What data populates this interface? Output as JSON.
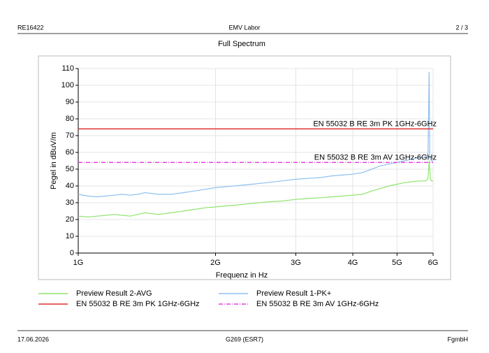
{
  "header": {
    "left": "RE16422",
    "center": "EMV Labor",
    "right": "2 / 3"
  },
  "footer": {
    "left": "17.06.2026",
    "center": "G269 (ESR7)",
    "right": "FgmbH"
  },
  "chart_data": {
    "type": "line",
    "title": "Full Spectrum",
    "x_label": "Frequenz in Hz",
    "y_label": "Pegel in dBuV/m",
    "xscale": "log",
    "grid": true,
    "xlim": [
      1000000000,
      6000000000
    ],
    "xticks": [
      {
        "value": 1000000000,
        "label": "1G"
      },
      {
        "value": 2000000000,
        "label": "2G"
      },
      {
        "value": 3000000000,
        "label": "3G"
      },
      {
        "value": 4000000000,
        "label": "4G"
      },
      {
        "value": 5000000000,
        "label": "5G"
      },
      {
        "value": 6000000000,
        "label": "6G"
      }
    ],
    "ylim": [
      0,
      110
    ],
    "yticks": [
      0,
      10,
      20,
      30,
      40,
      50,
      60,
      70,
      80,
      90,
      100,
      110
    ],
    "series": [
      {
        "name": "Preview Result 2-AVG",
        "color": "#8ee46e",
        "style": "solid",
        "x": [
          1000000000,
          1050000000,
          1100000000,
          1150000000,
          1200000000,
          1250000000,
          1300000000,
          1350000000,
          1400000000,
          1500000000,
          1600000000,
          1700000000,
          1800000000,
          1900000000,
          2000000000,
          2200000000,
          2400000000,
          2600000000,
          2800000000,
          3000000000,
          3200000000,
          3400000000,
          3600000000,
          3800000000,
          4000000000,
          4200000000,
          4400000000,
          4600000000,
          4800000000,
          5000000000,
          5200000000,
          5400000000,
          5600000000,
          5800000000,
          5850000000,
          5880000000,
          5900000000,
          5920000000,
          5950000000,
          6000000000
        ],
        "values": [
          22,
          21.5,
          22,
          22.5,
          23,
          22.5,
          22,
          23,
          24,
          23,
          24,
          25,
          26,
          27,
          27.5,
          28.5,
          29.5,
          30.5,
          31,
          32,
          32.5,
          33,
          33.5,
          34,
          34.5,
          35,
          37,
          38.5,
          40,
          41,
          42,
          42.5,
          43,
          43,
          45,
          55,
          50,
          44,
          43,
          43
        ]
      },
      {
        "name": "Preview Result 1-PK+",
        "color": "#8fc0f0",
        "style": "solid",
        "x": [
          1000000000,
          1050000000,
          1100000000,
          1150000000,
          1200000000,
          1250000000,
          1300000000,
          1350000000,
          1400000000,
          1500000000,
          1600000000,
          1700000000,
          1800000000,
          1900000000,
          2000000000,
          2200000000,
          2400000000,
          2600000000,
          2800000000,
          3000000000,
          3200000000,
          3400000000,
          3600000000,
          3800000000,
          4000000000,
          4200000000,
          4400000000,
          4600000000,
          4800000000,
          5000000000,
          5200000000,
          5400000000,
          5600000000,
          5800000000,
          5850000000,
          5880000000,
          5900000000,
          5920000000,
          5950000000,
          6000000000
        ],
        "values": [
          35,
          34,
          33.5,
          34,
          34.5,
          35,
          34.5,
          35,
          36,
          35,
          35,
          36,
          37,
          38,
          39,
          40,
          41,
          42,
          43,
          44,
          44.5,
          45,
          46,
          46.5,
          47,
          48,
          50,
          52,
          53,
          54,
          55,
          56,
          57,
          57,
          60,
          108,
          58,
          56,
          55,
          55
        ]
      },
      {
        "name": "EN 55032 B RE 3m PK 1GHz-6GHz",
        "color": "#e03030",
        "style": "solid",
        "x": [
          1000000000,
          6000000000
        ],
        "values": [
          74,
          74
        ]
      },
      {
        "name": "EN 55032 B RE 3m AV 1GHz-6GHz",
        "color": "#e040e0",
        "style": "dashdot",
        "x": [
          1000000000,
          6000000000
        ],
        "values": [
          54,
          54
        ]
      }
    ]
  }
}
